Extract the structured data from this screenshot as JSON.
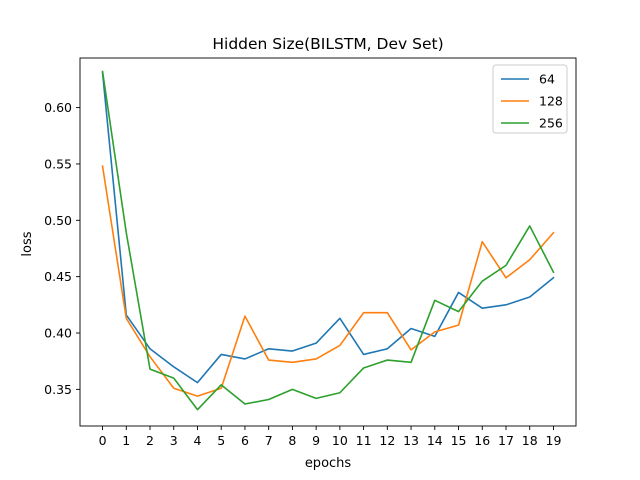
{
  "chart_data": {
    "type": "line",
    "title": "Hidden Size(BILSTM, Dev Set)",
    "xlabel": "epochs",
    "ylabel": "loss",
    "x": [
      0,
      1,
      2,
      3,
      4,
      5,
      6,
      7,
      8,
      9,
      10,
      11,
      12,
      13,
      14,
      15,
      16,
      17,
      18,
      19
    ],
    "xticks": [
      "0",
      "1",
      "2",
      "3",
      "4",
      "5",
      "6",
      "7",
      "8",
      "9",
      "10",
      "11",
      "12",
      "13",
      "14",
      "15",
      "16",
      "17",
      "18",
      "19"
    ],
    "yticks": [
      "0.35",
      "0.40",
      "0.45",
      "0.50",
      "0.55",
      "0.60"
    ],
    "ytick_values": [
      0.35,
      0.4,
      0.45,
      0.5,
      0.55,
      0.6
    ],
    "ylim": [
      0.3175,
      0.644
    ],
    "xlim": [
      -0.95,
      19.95
    ],
    "grid": false,
    "legend_position": "top-right",
    "series": [
      {
        "name": "64",
        "color": "#1f77b4",
        "values": [
          0.631,
          0.416,
          0.386,
          0.37,
          0.356,
          0.381,
          0.377,
          0.386,
          0.384,
          0.391,
          0.413,
          0.381,
          0.386,
          0.404,
          0.397,
          0.436,
          0.422,
          0.425,
          0.432,
          0.449
        ]
      },
      {
        "name": "128",
        "color": "#ff7f0e",
        "values": [
          0.548,
          0.413,
          0.379,
          0.351,
          0.344,
          0.351,
          0.415,
          0.376,
          0.374,
          0.377,
          0.389,
          0.418,
          0.418,
          0.385,
          0.401,
          0.407,
          0.481,
          0.449,
          0.465,
          0.489
        ]
      },
      {
        "name": "256",
        "color": "#2ca02c",
        "values": [
          0.632,
          0.489,
          0.368,
          0.36,
          0.332,
          0.354,
          0.337,
          0.341,
          0.35,
          0.342,
          0.347,
          0.369,
          0.376,
          0.374,
          0.429,
          0.419,
          0.446,
          0.46,
          0.495,
          0.454
        ]
      }
    ]
  }
}
